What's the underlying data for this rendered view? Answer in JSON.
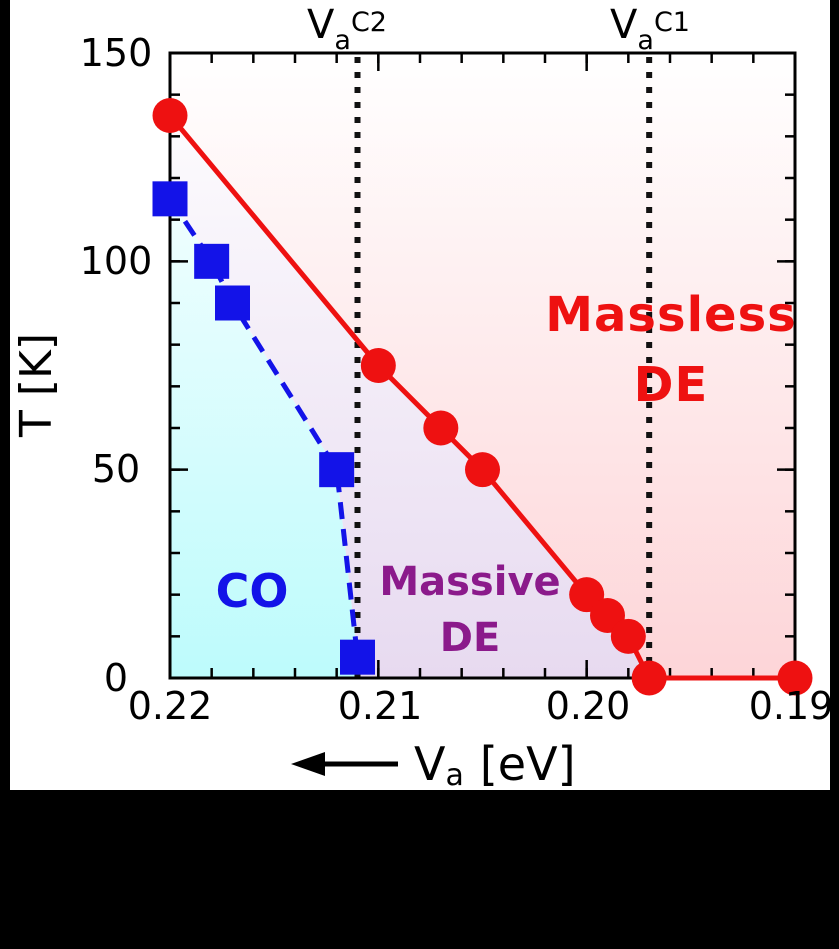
{
  "figure": {
    "background": "#000000",
    "canvas_color": "#ffffff",
    "frame_color": "#000000"
  },
  "chart_data": {
    "type": "line",
    "title": "",
    "xlabel": "V_a [eV]",
    "ylabel": "T [K]",
    "x_axis": {
      "reversed": true,
      "min": 0.19,
      "max": 0.22,
      "major_ticks": [
        0.22,
        0.21,
        0.2,
        0.19
      ],
      "tick_labels": [
        "0.22",
        "0.21",
        "0.20",
        "0.19"
      ],
      "minor_step": 0.002
    },
    "y_axis": {
      "min": 0,
      "max": 150,
      "major_ticks": [
        0,
        50,
        100,
        150
      ],
      "tick_labels": [
        "0",
        "50",
        "100",
        "150"
      ],
      "minor_step": 10
    },
    "series": [
      {
        "name": "massless-de-boundary",
        "color": "#ee1111",
        "marker": "circle",
        "marker_size": 35,
        "line": "solid",
        "points": [
          [
            0.22,
            135
          ],
          [
            0.21,
            75
          ],
          [
            0.207,
            60
          ],
          [
            0.205,
            50
          ],
          [
            0.2,
            20
          ],
          [
            0.199,
            15
          ],
          [
            0.198,
            10
          ],
          [
            0.197,
            0
          ],
          [
            0.19,
            0
          ]
        ]
      },
      {
        "name": "co-boundary",
        "color": "#1313e8",
        "marker": "square",
        "marker_size": 35,
        "line": "dashed",
        "points": [
          [
            0.22,
            115
          ],
          [
            0.218,
            100
          ],
          [
            0.217,
            90
          ],
          [
            0.212,
            50
          ],
          [
            0.211,
            5
          ]
        ]
      }
    ],
    "vlines": [
      {
        "name": "vline-c2",
        "x": 0.211,
        "label": "Va^C2",
        "style": "dotted",
        "color": "#111111"
      },
      {
        "name": "vline-c1",
        "x": 0.197,
        "label": "Va^C1",
        "style": "dotted",
        "color": "#111111"
      }
    ],
    "regions": [
      {
        "name": "co-region",
        "label": "CO",
        "fill_bottom": "#bdfbfc",
        "fill_top": "#ffffff"
      },
      {
        "name": "massive-de-region",
        "label": "Massive DE",
        "fill_bottom": "#e7daf0",
        "fill_top": "#ffffff"
      },
      {
        "name": "massless-de-region",
        "label": "Massless DE",
        "fill_bottom": "#fdd5d8",
        "fill_top": "#ffffff"
      }
    ],
    "legend": "none",
    "grid": false
  },
  "labels": {
    "y_ticks": [
      "150",
      "100",
      "50",
      "0"
    ],
    "x_ticks": [
      "0.22",
      "0.21",
      "0.20",
      "0.19"
    ],
    "ylabel": "T [K]",
    "xlabel_base": "V",
    "xlabel_sub": "a",
    "xlabel_unit": "[eV]",
    "vline_c2": {
      "base": "V",
      "sub": "a",
      "sup": "C2"
    },
    "vline_c1": {
      "base": "V",
      "sub": "a",
      "sup": "C1"
    },
    "region_co": "CO",
    "region_massive_line1": "Massive",
    "region_massive_line2": "DE",
    "region_massless_line1": "Massless",
    "region_massless_line2": "DE"
  },
  "colors": {
    "red_accent": "#ee1111",
    "blue_accent": "#1313e8",
    "purple_accent": "#8b1a8b",
    "cyan_fill": "#bdfbfc",
    "lavender_fill": "#e7daf0",
    "pink_fill": "#fdd5d8"
  }
}
